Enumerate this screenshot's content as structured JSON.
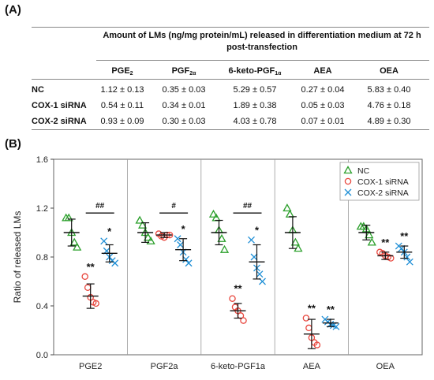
{
  "panel_a": {
    "label": "(A)",
    "caption": "Amount of LMs (ng/mg protein/mL) released in differentiation medium at 72 h post-transfection",
    "columns": [
      {
        "base": "PGE",
        "sub": "2"
      },
      {
        "base": "PGF",
        "sub": "2α"
      },
      {
        "base": "6-keto-PGF",
        "sub": "1α"
      },
      {
        "base": "AEA",
        "sub": ""
      },
      {
        "base": "OEA",
        "sub": ""
      }
    ],
    "rows": [
      {
        "label": "NC",
        "values": [
          "1.12 ± 0.13",
          "0.35 ± 0.03",
          "5.29 ± 0.57",
          "0.27 ± 0.04",
          "5.83 ± 0.40"
        ]
      },
      {
        "label": "COX-1 siRNA",
        "values": [
          "0.54 ± 0.11",
          "0.34 ± 0.01",
          "1.89 ± 0.38",
          "0.05 ± 0.03",
          "4.76 ± 0.18"
        ]
      },
      {
        "label": "COX-2 siRNA",
        "values": [
          "0.93 ± 0.09",
          "0.30 ± 0.03",
          "4.03 ± 0.78",
          "0.07 ± 0.01",
          "4.89 ± 0.30"
        ]
      }
    ]
  },
  "panel_b_label": "(B)",
  "chart_data": {
    "type": "scatter",
    "ylabel": "Ratio of released LMs",
    "ylim": [
      0,
      1.6
    ],
    "yticks": [
      "0.0",
      "0.4",
      "0.8",
      "1.2",
      "1.6"
    ],
    "categories": [
      "PGE2",
      "PGF2a",
      "6-keto-PGF1a",
      "AEA",
      "OEA"
    ],
    "legend_position": "top-right",
    "series": [
      {
        "name": "NC",
        "color": "#2ca02c",
        "marker": "triangle",
        "points": [
          [
            1.12,
            1.12,
            1.0,
            0.92,
            0.88
          ],
          [
            1.1,
            1.06,
            1.0,
            0.96,
            0.93
          ],
          [
            1.15,
            1.12,
            1.02,
            0.95,
            0.86
          ],
          [
            1.2,
            1.15,
            1.02,
            0.92,
            0.87
          ],
          [
            1.05,
            1.05,
            1.03,
            0.98,
            0.92
          ]
        ],
        "mean": [
          1.0,
          1.0,
          1.0,
          1.0,
          1.0
        ],
        "sd": [
          0.11,
          0.08,
          0.1,
          0.13,
          0.06
        ]
      },
      {
        "name": "COX-1 siRNA",
        "color": "#e8473e",
        "marker": "circle",
        "points": [
          [
            0.64,
            0.55,
            0.47,
            0.43,
            0.42
          ],
          [
            0.99,
            0.97,
            0.96,
            0.98,
            0.98
          ],
          [
            0.46,
            0.39,
            0.36,
            0.32,
            0.28
          ],
          [
            0.3,
            0.22,
            0.14,
            0.1,
            0.08
          ],
          [
            0.84,
            0.83,
            0.81,
            0.8,
            0.79
          ]
        ],
        "mean": [
          0.48,
          0.98,
          0.36,
          0.17,
          0.81
        ],
        "sd": [
          0.1,
          0.02,
          0.06,
          0.12,
          0.03
        ]
      },
      {
        "name": "COX-2 siRNA",
        "color": "#1f8fd6",
        "marker": "x",
        "points": [
          [
            0.93,
            0.85,
            0.8,
            0.77,
            0.75
          ],
          [
            0.95,
            0.9,
            0.84,
            0.78,
            0.75
          ],
          [
            0.94,
            0.8,
            0.71,
            0.66,
            0.6
          ],
          [
            0.29,
            0.27,
            0.25,
            0.24,
            0.23
          ],
          [
            0.89,
            0.87,
            0.84,
            0.8,
            0.76
          ]
        ],
        "mean": [
          0.83,
          0.86,
          0.76,
          0.26,
          0.84
        ],
        "sd": [
          0.07,
          0.09,
          0.14,
          0.03,
          0.05
        ]
      }
    ],
    "significance": [
      {
        "category": 0,
        "series": 1,
        "text": "**"
      },
      {
        "category": 0,
        "series": 2,
        "text": "*"
      },
      {
        "category": 1,
        "series": 2,
        "text": "*"
      },
      {
        "category": 2,
        "series": 1,
        "text": "**"
      },
      {
        "category": 2,
        "series": 2,
        "text": "*"
      },
      {
        "category": 3,
        "series": 1,
        "text": "**"
      },
      {
        "category": 3,
        "series": 2,
        "text": "**"
      },
      {
        "category": 4,
        "series": 1,
        "text": "**"
      },
      {
        "category": 4,
        "series": 2,
        "text": "**"
      }
    ],
    "brackets": [
      {
        "category": 0,
        "text": "##",
        "y": 1.16
      },
      {
        "category": 1,
        "text": "#",
        "y": 1.16
      },
      {
        "category": 2,
        "text": "##",
        "y": 1.16
      }
    ]
  }
}
